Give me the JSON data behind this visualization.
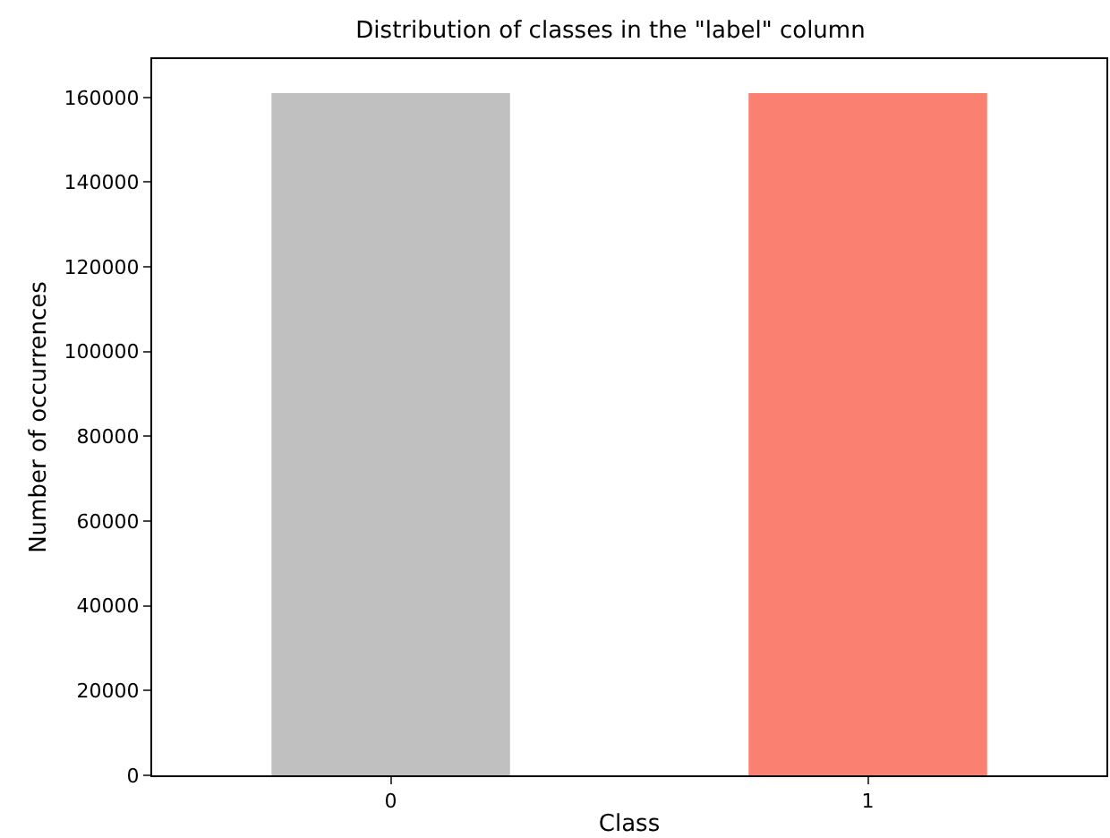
{
  "chart_data": {
    "type": "bar",
    "title": "Distribution of classes in the \"label\" column",
    "xlabel": "Class",
    "ylabel": "Number of occurrences",
    "categories": [
      "0",
      "1"
    ],
    "values": [
      161000,
      161000
    ],
    "colors": [
      "#c0c0c0",
      "#fa8072"
    ],
    "ylim": [
      0,
      169050
    ],
    "yticks": [
      0,
      20000,
      40000,
      60000,
      80000,
      100000,
      120000,
      140000,
      160000
    ]
  }
}
